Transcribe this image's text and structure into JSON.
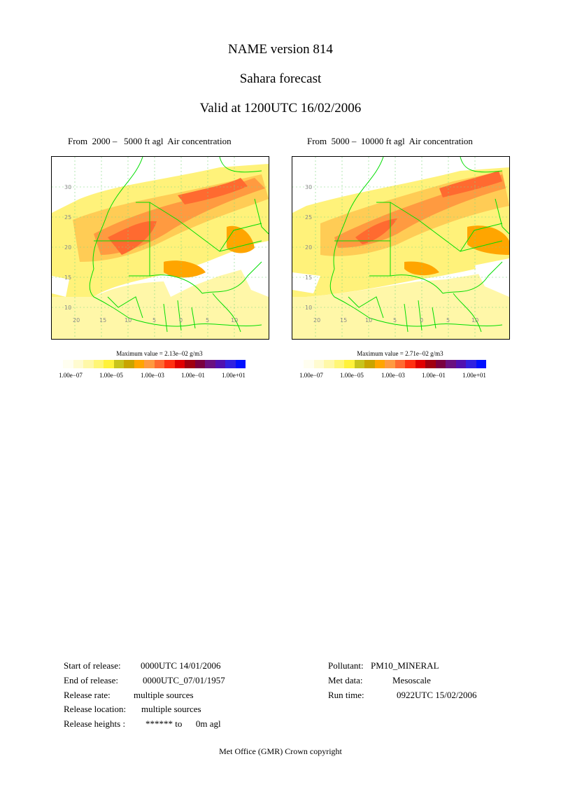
{
  "header": {
    "title": "NAME version 814",
    "subtitle": "Sahara forecast",
    "valid": "Valid at 1200UTC 16/02/2006"
  },
  "panels": [
    {
      "title": "From  2000 –   5000 ft agl  Air concentration",
      "max_value": "Maximum value = 2.13e−02 g/m3",
      "lat_labels": [
        "30",
        "25",
        "20",
        "15",
        "10"
      ],
      "lon_labels": [
        "20",
        "15",
        "10",
        "5",
        "0",
        "5",
        "10"
      ]
    },
    {
      "title": "From  5000 –  10000 ft agl  Air concentration",
      "max_value": "Maximum value = 2.71e−02 g/m3",
      "lat_labels": [
        "30",
        "25",
        "20",
        "15",
        "10"
      ],
      "lon_labels": [
        "20",
        "15",
        "10",
        "5",
        "0",
        "5",
        "10"
      ]
    }
  ],
  "color_scale": {
    "colors": [
      "#fffef0",
      "#fffbd0",
      "#fff8a8",
      "#fff676",
      "#fff23a",
      "#c8c41c",
      "#c9a400",
      "#ffa500",
      "#ff9a40",
      "#ff6a30",
      "#ff3010",
      "#e00000",
      "#a00010",
      "#7a0040",
      "#6a1080",
      "#5010b0",
      "#3020e0",
      "#0010ff"
    ],
    "labels": [
      "1.00e−07",
      "1.00e−05",
      "1.00e−03",
      "1.00e−01",
      "1.00e+01"
    ]
  },
  "info_left": {
    "start_label": "Start of release:",
    "start_value": "0000UTC 14/01/2006",
    "end_label": "End of release:",
    "end_value": "0000UTC_07/01/1957",
    "rate_label": "Release rate:",
    "rate_value": "multiple sources",
    "location_label": "Release location:",
    "location_value": "multiple sources",
    "heights_label": "Release heights :",
    "heights_value": "****** to      0m agl"
  },
  "info_right": {
    "pollutant_label": "Pollutant:",
    "pollutant_value": "PM10_MINERAL",
    "met_label": "Met data:",
    "met_value": "Mesoscale",
    "run_label": "Run time:",
    "run_value": "0922UTC 15/02/2006"
  },
  "footer": "Met Office (GMR)  Crown copyright"
}
